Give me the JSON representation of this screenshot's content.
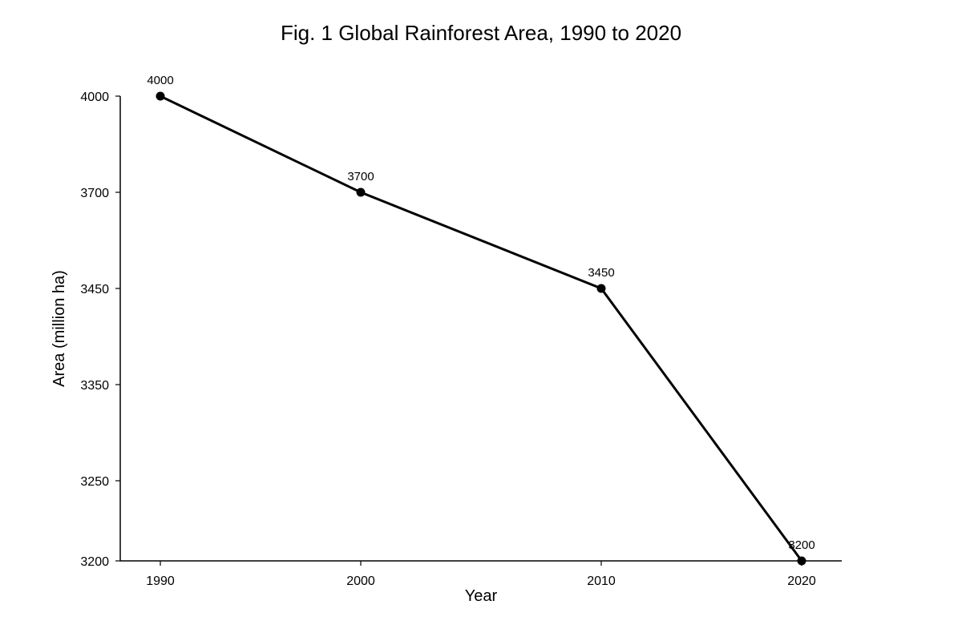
{
  "chart_data": {
    "type": "line",
    "title": "Fig. 1 Global Rainforest Area, 1990 to 2020",
    "xlabel": "Year",
    "ylabel": "Area (million ha)",
    "x": [
      1990,
      2000,
      2010,
      2020
    ],
    "series": [
      {
        "values": [
          4000,
          3700,
          3450,
          3200
        ],
        "color": "#000000"
      }
    ],
    "y_ticks": [
      3200,
      3250,
      3350,
      3450,
      3700,
      4000
    ],
    "x_ticks": [
      1990,
      2000,
      2010,
      2020
    ],
    "scale": "categorical-y",
    "grid": false,
    "legend": "none"
  }
}
